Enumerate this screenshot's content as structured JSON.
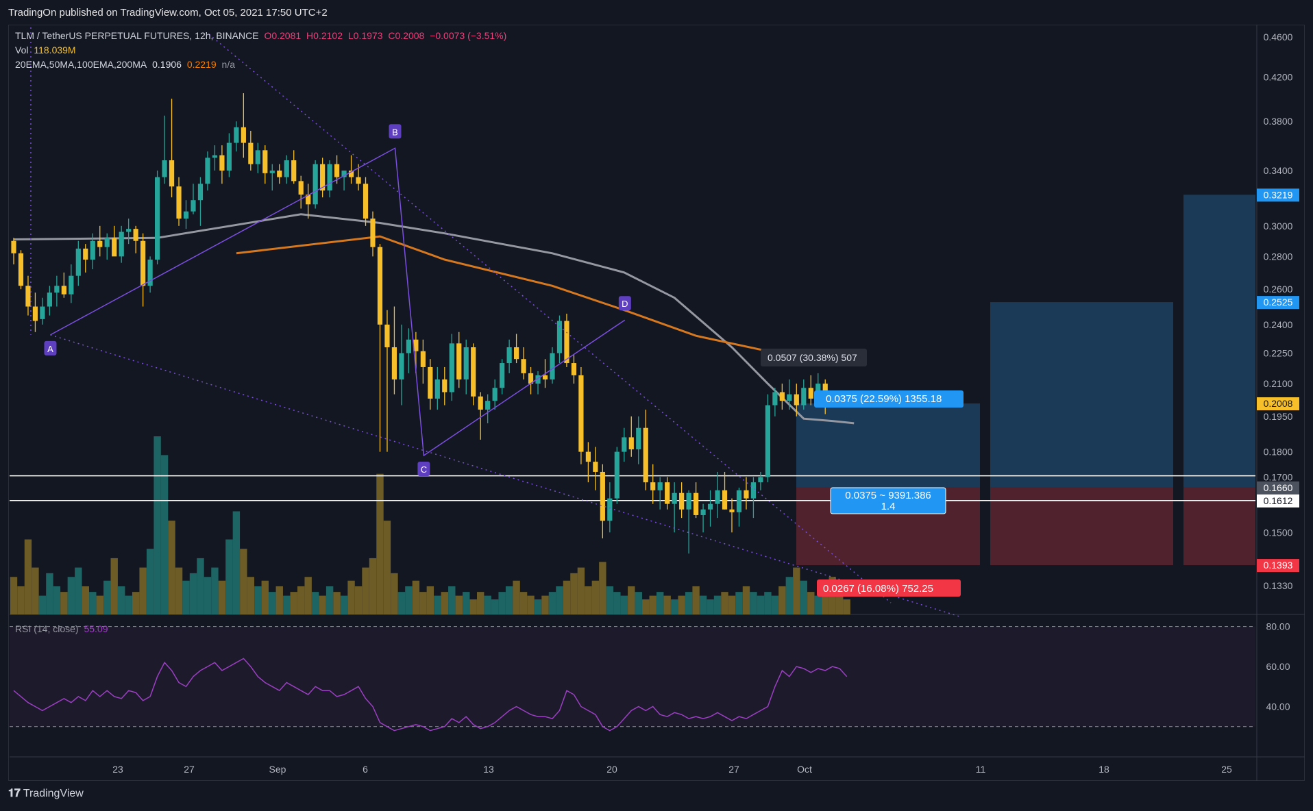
{
  "header": {
    "published": "TradingOn published on TradingView.com, Oct 05, 2021 17:50 UTC+2"
  },
  "legend": {
    "symbol": "TLM / TetherUS PERPETUAL FUTURES, 12h, BINANCE",
    "open": "O0.2081",
    "high": "H0.2102",
    "low": "L0.1973",
    "close": "C0.2008",
    "change": "−0.0073 (−3.51%)",
    "vol_label": "Vol",
    "vol_value": "118.039M",
    "ma_label": "20EMA,50MA,100EMA,200MA",
    "ma_v1": "0.1906",
    "ma_v2": "0.2219",
    "ma_v3": "n/a",
    "rsi_label": "RSI (14, close)",
    "rsi_value": "55.09"
  },
  "footer": {
    "logo_text": "TradingView"
  },
  "colors": {
    "up": "#26a69a",
    "down": "#f7c02b",
    "ma_gray": "#9598a1",
    "ma_orange": "#d5781f",
    "pattern": "#7b4fe0",
    "rsi": "#9c3fc3"
  },
  "chart_data": {
    "type": "candlestick",
    "y_axis": {
      "min": 0.125,
      "max": 0.47,
      "scale": "log",
      "ticks": [
        "0.4600",
        "0.4200",
        "0.3800",
        "0.3400",
        "0.3000",
        "0.2800",
        "0.2600",
        "0.2400",
        "0.2250",
        "0.2100",
        "0.1950",
        "0.1800",
        "0.1700",
        "0.1500",
        "0.1330"
      ]
    },
    "x_axis": {
      "ticks": [
        "23",
        "27",
        "Sep",
        "6",
        "13",
        "20",
        "27",
        "Oct",
        "11",
        "18",
        "25"
      ]
    },
    "price_badges": [
      {
        "label": "0.3219",
        "value": 0.3219,
        "color": "#2196f3"
      },
      {
        "label": "0.2525",
        "value": 0.2525,
        "color": "#2196f3"
      },
      {
        "label": "0.2008",
        "value": 0.2008,
        "color": "#f7c02b"
      },
      {
        "label": "0.1660",
        "value": 0.166,
        "color": "#4c525e"
      },
      {
        "label": "0.1612",
        "value": 0.1612,
        "color": "#ffffff"
      },
      {
        "label": "0.1393",
        "value": 0.1393,
        "color": "#f23645"
      }
    ],
    "horizontal_levels": [
      0.1705,
      0.1612
    ],
    "harmonic_points": [
      {
        "label": "A",
        "value": 0.2345
      },
      {
        "label": "B",
        "value": 0.3577
      },
      {
        "label": "C",
        "value": 0.1785
      },
      {
        "label": "D",
        "value": 0.2425
      }
    ],
    "annotations": {
      "measure": "0.0507 (30.38%) 507",
      "target": "0.0375 (22.59%) 1355.18",
      "entry": "0.0375 ~ 9391.386",
      "ratio": "1.4",
      "stop": "0.0267 (16.08%) 752.25"
    },
    "ohlc": [
      [
        0.29,
        0.292,
        0.275,
        0.282
      ],
      [
        0.282,
        0.284,
        0.26,
        0.262
      ],
      [
        0.262,
        0.268,
        0.245,
        0.25
      ],
      [
        0.25,
        0.258,
        0.236,
        0.242
      ],
      [
        0.243,
        0.255,
        0.24,
        0.25
      ],
      [
        0.25,
        0.262,
        0.245,
        0.258
      ],
      [
        0.258,
        0.268,
        0.25,
        0.262
      ],
      [
        0.262,
        0.27,
        0.255,
        0.257
      ],
      [
        0.257,
        0.275,
        0.252,
        0.268
      ],
      [
        0.268,
        0.29,
        0.262,
        0.285
      ],
      [
        0.285,
        0.288,
        0.27,
        0.278
      ],
      [
        0.278,
        0.295,
        0.272,
        0.29
      ],
      [
        0.29,
        0.3,
        0.28,
        0.286
      ],
      [
        0.286,
        0.295,
        0.278,
        0.292
      ],
      [
        0.292,
        0.3,
        0.282,
        0.28
      ],
      [
        0.28,
        0.3,
        0.276,
        0.296
      ],
      [
        0.296,
        0.305,
        0.288,
        0.298
      ],
      [
        0.298,
        0.3,
        0.282,
        0.29
      ],
      [
        0.29,
        0.295,
        0.25,
        0.262
      ],
      [
        0.262,
        0.28,
        0.258,
        0.278
      ],
      [
        0.278,
        0.34,
        0.275,
        0.335
      ],
      [
        0.335,
        0.385,
        0.33,
        0.348
      ],
      [
        0.348,
        0.4,
        0.32,
        0.328
      ],
      [
        0.328,
        0.335,
        0.3,
        0.305
      ],
      [
        0.305,
        0.318,
        0.298,
        0.31
      ],
      [
        0.31,
        0.33,
        0.308,
        0.318
      ],
      [
        0.318,
        0.335,
        0.3,
        0.33
      ],
      [
        0.33,
        0.355,
        0.325,
        0.35
      ],
      [
        0.35,
        0.36,
        0.34,
        0.352
      ],
      [
        0.352,
        0.36,
        0.33,
        0.34
      ],
      [
        0.34,
        0.37,
        0.335,
        0.362
      ],
      [
        0.362,
        0.38,
        0.355,
        0.375
      ],
      [
        0.375,
        0.405,
        0.35,
        0.362
      ],
      [
        0.362,
        0.372,
        0.34,
        0.345
      ],
      [
        0.345,
        0.362,
        0.338,
        0.356
      ],
      [
        0.356,
        0.36,
        0.33,
        0.338
      ],
      [
        0.338,
        0.345,
        0.325,
        0.34
      ],
      [
        0.34,
        0.345,
        0.33,
        0.335
      ],
      [
        0.335,
        0.352,
        0.33,
        0.348
      ],
      [
        0.348,
        0.356,
        0.33,
        0.332
      ],
      [
        0.332,
        0.336,
        0.312,
        0.322
      ],
      [
        0.322,
        0.33,
        0.305,
        0.315
      ],
      [
        0.315,
        0.348,
        0.312,
        0.345
      ],
      [
        0.345,
        0.35,
        0.32,
        0.325
      ],
      [
        0.325,
        0.348,
        0.32,
        0.345
      ],
      [
        0.345,
        0.352,
        0.33,
        0.335
      ],
      [
        0.335,
        0.34,
        0.325,
        0.34
      ],
      [
        0.34,
        0.352,
        0.33,
        0.335
      ],
      [
        0.335,
        0.345,
        0.325,
        0.33
      ],
      [
        0.33,
        0.335,
        0.3,
        0.305
      ],
      [
        0.305,
        0.31,
        0.28,
        0.286
      ],
      [
        0.286,
        0.288,
        0.18,
        0.24
      ],
      [
        0.24,
        0.248,
        0.18,
        0.228
      ],
      [
        0.228,
        0.25,
        0.205,
        0.212
      ],
      [
        0.212,
        0.24,
        0.2,
        0.225
      ],
      [
        0.225,
        0.238,
        0.215,
        0.232
      ],
      [
        0.232,
        0.236,
        0.215,
        0.226
      ],
      [
        0.226,
        0.232,
        0.21,
        0.218
      ],
      [
        0.218,
        0.222,
        0.198,
        0.203
      ],
      [
        0.203,
        0.218,
        0.198,
        0.212
      ],
      [
        0.212,
        0.218,
        0.2,
        0.206
      ],
      [
        0.206,
        0.235,
        0.202,
        0.23
      ],
      [
        0.23,
        0.236,
        0.208,
        0.212
      ],
      [
        0.212,
        0.232,
        0.205,
        0.228
      ],
      [
        0.228,
        0.23,
        0.2,
        0.204
      ],
      [
        0.204,
        0.206,
        0.185,
        0.198
      ],
      [
        0.198,
        0.205,
        0.192,
        0.202
      ],
      [
        0.202,
        0.212,
        0.198,
        0.208
      ],
      [
        0.208,
        0.222,
        0.205,
        0.22
      ],
      [
        0.22,
        0.232,
        0.215,
        0.228
      ],
      [
        0.228,
        0.235,
        0.22,
        0.222
      ],
      [
        0.222,
        0.228,
        0.212,
        0.215
      ],
      [
        0.215,
        0.218,
        0.205,
        0.21
      ],
      [
        0.21,
        0.216,
        0.205,
        0.214
      ],
      [
        0.214,
        0.222,
        0.208,
        0.212
      ],
      [
        0.212,
        0.228,
        0.21,
        0.225
      ],
      [
        0.225,
        0.245,
        0.22,
        0.242
      ],
      [
        0.242,
        0.246,
        0.218,
        0.22
      ],
      [
        0.22,
        0.224,
        0.21,
        0.214
      ],
      [
        0.214,
        0.218,
        0.175,
        0.18
      ],
      [
        0.18,
        0.184,
        0.168,
        0.176
      ],
      [
        0.176,
        0.182,
        0.165,
        0.172
      ],
      [
        0.172,
        0.175,
        0.148,
        0.154
      ],
      [
        0.154,
        0.168,
        0.15,
        0.162
      ],
      [
        0.162,
        0.182,
        0.16,
        0.18
      ],
      [
        0.18,
        0.19,
        0.176,
        0.186
      ],
      [
        0.186,
        0.195,
        0.178,
        0.181
      ],
      [
        0.181,
        0.195,
        0.175,
        0.19
      ],
      [
        0.19,
        0.198,
        0.165,
        0.168
      ],
      [
        0.168,
        0.175,
        0.16,
        0.165
      ],
      [
        0.165,
        0.17,
        0.158,
        0.168
      ],
      [
        0.168,
        0.17,
        0.158,
        0.16
      ],
      [
        0.16,
        0.168,
        0.15,
        0.164
      ],
      [
        0.164,
        0.168,
        0.155,
        0.158
      ],
      [
        0.158,
        0.165,
        0.143,
        0.164
      ],
      [
        0.164,
        0.168,
        0.155,
        0.156
      ],
      [
        0.156,
        0.16,
        0.15,
        0.158
      ],
      [
        0.158,
        0.165,
        0.152,
        0.16
      ],
      [
        0.16,
        0.172,
        0.155,
        0.165
      ],
      [
        0.165,
        0.172,
        0.158,
        0.158
      ],
      [
        0.158,
        0.162,
        0.15,
        0.157
      ],
      [
        0.157,
        0.166,
        0.152,
        0.165
      ],
      [
        0.165,
        0.17,
        0.158,
        0.162
      ],
      [
        0.162,
        0.17,
        0.155,
        0.168
      ],
      [
        0.168,
        0.172,
        0.165,
        0.17
      ],
      [
        0.17,
        0.205,
        0.168,
        0.2
      ],
      [
        0.2,
        0.208,
        0.195,
        0.206
      ],
      [
        0.206,
        0.21,
        0.198,
        0.202
      ],
      [
        0.202,
        0.212,
        0.198,
        0.205
      ],
      [
        0.205,
        0.21,
        0.195,
        0.2
      ],
      [
        0.2,
        0.212,
        0.198,
        0.208
      ],
      [
        0.208,
        0.214,
        0.2,
        0.203
      ],
      [
        0.203,
        0.215,
        0.2,
        0.21
      ],
      [
        0.21,
        0.212,
        0.196,
        0.2008
      ]
    ],
    "volume_relative": [
      0.2,
      0.15,
      0.4,
      0.25,
      0.1,
      0.22,
      0.15,
      0.12,
      0.2,
      0.25,
      0.15,
      0.12,
      0.1,
      0.18,
      0.3,
      0.15,
      0.1,
      0.12,
      0.25,
      0.35,
      0.95,
      0.85,
      0.5,
      0.25,
      0.18,
      0.22,
      0.3,
      0.2,
      0.25,
      0.18,
      0.4,
      0.55,
      0.35,
      0.2,
      0.15,
      0.18,
      0.12,
      0.15,
      0.1,
      0.12,
      0.15,
      0.2,
      0.12,
      0.1,
      0.15,
      0.12,
      0.1,
      0.18,
      0.15,
      0.25,
      0.3,
      0.75,
      0.5,
      0.22,
      0.12,
      0.15,
      0.18,
      0.12,
      0.15,
      0.1,
      0.12,
      0.15,
      0.1,
      0.12,
      0.08,
      0.12,
      0.1,
      0.08,
      0.12,
      0.15,
      0.18,
      0.12,
      0.1,
      0.08,
      0.1,
      0.12,
      0.15,
      0.18,
      0.22,
      0.25,
      0.15,
      0.18,
      0.28,
      0.15,
      0.12,
      0.1,
      0.15,
      0.12,
      0.08,
      0.1,
      0.12,
      0.1,
      0.08,
      0.1,
      0.12,
      0.15,
      0.1,
      0.08,
      0.1,
      0.12,
      0.1,
      0.12,
      0.15,
      0.12,
      0.1,
      0.12,
      0.1,
      0.15,
      0.2,
      0.25,
      0.18,
      0.12,
      0.1,
      0.15,
      0.2,
      0.12,
      0.08
    ],
    "ma_gray": [
      [
        0,
        0.291
      ],
      [
        20,
        0.292
      ],
      [
        40,
        0.308
      ],
      [
        51,
        0.302
      ],
      [
        60,
        0.295
      ],
      [
        75,
        0.282
      ],
      [
        85,
        0.27
      ],
      [
        92,
        0.255
      ],
      [
        100,
        0.228
      ],
      [
        105,
        0.21
      ],
      [
        110,
        0.194
      ],
      [
        114,
        0.193
      ],
      [
        117,
        0.192
      ]
    ],
    "ma_orange": [
      [
        31,
        0.282
      ],
      [
        51,
        0.293
      ],
      [
        60,
        0.278
      ],
      [
        75,
        0.262
      ],
      [
        85,
        0.248
      ],
      [
        95,
        0.234
      ],
      [
        105,
        0.226
      ],
      [
        117,
        0.222
      ]
    ],
    "rsi": {
      "lines": [
        "80.00",
        "60.00",
        "40.00"
      ],
      "values": [
        48,
        45,
        42,
        40,
        38,
        40,
        42,
        44,
        42,
        45,
        43,
        48,
        45,
        48,
        45,
        44,
        48,
        47,
        43,
        45,
        55,
        62,
        58,
        52,
        50,
        55,
        58,
        60,
        62,
        58,
        60,
        62,
        64,
        60,
        55,
        52,
        50,
        48,
        52,
        50,
        48,
        46,
        50,
        48,
        48,
        45,
        46,
        48,
        50,
        44,
        40,
        32,
        30,
        28,
        29,
        30,
        31,
        30,
        28,
        29,
        30,
        34,
        32,
        35,
        31,
        29,
        30,
        32,
        35,
        38,
        40,
        38,
        36,
        35,
        35,
        34,
        38,
        48,
        46,
        40,
        38,
        36,
        30,
        28,
        30,
        34,
        38,
        40,
        38,
        40,
        36,
        35,
        37,
        36,
        34,
        35,
        34,
        35,
        37,
        35,
        33,
        35,
        34,
        36,
        38,
        40,
        50,
        58,
        55,
        60,
        59,
        57,
        59,
        58,
        60,
        59,
        55
      ]
    }
  }
}
